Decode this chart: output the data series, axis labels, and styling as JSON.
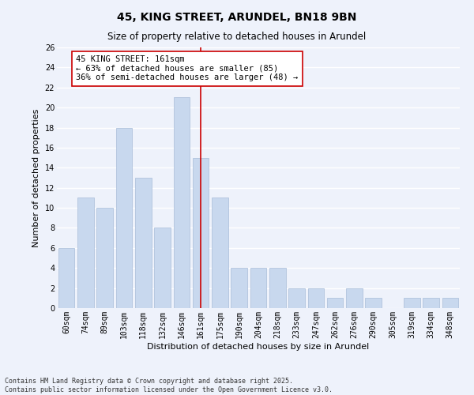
{
  "title": "45, KING STREET, ARUNDEL, BN18 9BN",
  "subtitle": "Size of property relative to detached houses in Arundel",
  "xlabel": "Distribution of detached houses by size in Arundel",
  "ylabel": "Number of detached properties",
  "bar_labels": [
    "60sqm",
    "74sqm",
    "89sqm",
    "103sqm",
    "118sqm",
    "132sqm",
    "146sqm",
    "161sqm",
    "175sqm",
    "190sqm",
    "204sqm",
    "218sqm",
    "233sqm",
    "247sqm",
    "262sqm",
    "276sqm",
    "290sqm",
    "305sqm",
    "319sqm",
    "334sqm",
    "348sqm"
  ],
  "bar_values": [
    6,
    11,
    10,
    18,
    13,
    8,
    21,
    15,
    11,
    4,
    4,
    4,
    2,
    2,
    1,
    2,
    1,
    0,
    1,
    1,
    1
  ],
  "bar_color": "#c8d8ee",
  "bar_edge_color": "#a8bcd8",
  "highlight_index": 7,
  "highlight_line_color": "#cc0000",
  "ylim": [
    0,
    26
  ],
  "yticks": [
    0,
    2,
    4,
    6,
    8,
    10,
    12,
    14,
    16,
    18,
    20,
    22,
    24,
    26
  ],
  "annotation_text": "45 KING STREET: 161sqm\n← 63% of detached houses are smaller (85)\n36% of semi-detached houses are larger (48) →",
  "annotation_box_color": "#ffffff",
  "annotation_box_edge_color": "#cc0000",
  "footer_line1": "Contains HM Land Registry data © Crown copyright and database right 2025.",
  "footer_line2": "Contains public sector information licensed under the Open Government Licence v3.0.",
  "background_color": "#eef2fb",
  "grid_color": "#ffffff",
  "title_fontsize": 10,
  "subtitle_fontsize": 8.5,
  "axis_label_fontsize": 8,
  "tick_fontsize": 7,
  "annotation_fontsize": 7.5,
  "footer_fontsize": 6
}
